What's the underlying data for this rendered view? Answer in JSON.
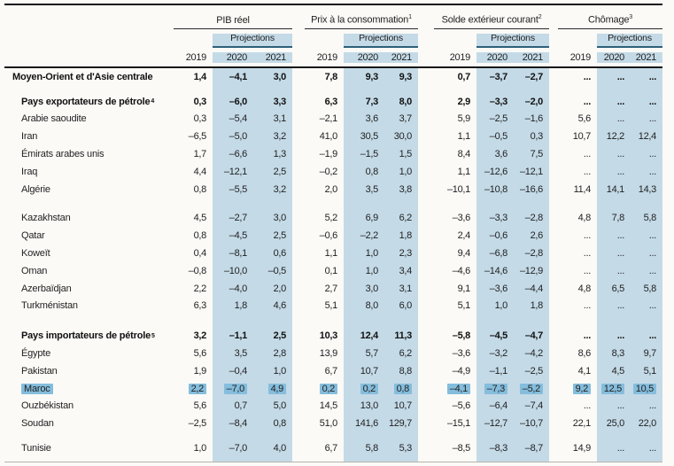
{
  "table": {
    "col_groups": [
      {
        "label": "PIB réel"
      },
      {
        "label": "Prix à la consommation",
        "sup": "1"
      },
      {
        "label": "Solde extérieur courant",
        "sup": "2"
      },
      {
        "label": "Chômage",
        "sup": "3"
      }
    ],
    "projections_label": "Projections",
    "years": [
      "2019",
      "2020",
      "2021"
    ],
    "accent_colors": {
      "band": "#c4dae7",
      "highlight": "#85bddc",
      "projections_rule": "#2d607a"
    },
    "rows": [
      {
        "label": "Moyen-Orient et d'Asie centrale",
        "style": "region",
        "values": [
          "1,4",
          "–4,1",
          "3,0",
          "7,8",
          "9,3",
          "9,3",
          "0,7",
          "–3,7",
          "–2,7",
          "...",
          "...",
          "..."
        ]
      },
      {
        "spacer": 8
      },
      {
        "label": "Pays exportateurs de pétrole",
        "sup": "4",
        "style": "group",
        "values": [
          "0,3",
          "–6,0",
          "3,3",
          "6,3",
          "7,3",
          "8,0",
          "2,9",
          "–3,3",
          "–2,0",
          "...",
          "...",
          "..."
        ]
      },
      {
        "label": "Arabie saoudite",
        "style": "country",
        "values": [
          "0,3",
          "–5,4",
          "3,1",
          "–2,1",
          "3,6",
          "3,7",
          "5,9",
          "–2,5",
          "–1,6",
          "5,6",
          "...",
          "..."
        ]
      },
      {
        "label": "Iran",
        "style": "country",
        "values": [
          "–6,5",
          "–5,0",
          "3,2",
          "41,0",
          "30,5",
          "30,0",
          "1,1",
          "–0,5",
          "0,3",
          "10,7",
          "12,2",
          "12,4"
        ]
      },
      {
        "label": "Émirats arabes unis",
        "style": "country",
        "values": [
          "1,7",
          "–6,6",
          "1,3",
          "–1,9",
          "–1,5",
          "1,5",
          "8,4",
          "3,6",
          "7,5",
          "...",
          "...",
          "..."
        ]
      },
      {
        "label": "Iraq",
        "style": "country",
        "values": [
          "4,4",
          "–12,1",
          "2,5",
          "–0,2",
          "0,8",
          "1,0",
          "1,1",
          "–12,6",
          "–12,1",
          "...",
          "...",
          "..."
        ]
      },
      {
        "label": "Algérie",
        "style": "country",
        "values": [
          "0,8",
          "–5,5",
          "3,2",
          "2,0",
          "3,5",
          "3,8",
          "–10,1",
          "–10,8",
          "–16,6",
          "11,4",
          "14,1",
          "14,3"
        ]
      },
      {
        "spacer": 13
      },
      {
        "label": "Kazakhstan",
        "style": "country",
        "values": [
          "4,5",
          "–2,7",
          "3,0",
          "5,2",
          "6,9",
          "6,2",
          "–3,6",
          "–3,3",
          "–2,8",
          "4,8",
          "7,8",
          "5,8"
        ]
      },
      {
        "label": "Qatar",
        "style": "country",
        "values": [
          "0,8",
          "–4,5",
          "2,5",
          "–0,6",
          "–2,2",
          "1,8",
          "2,4",
          "–0,6",
          "2,6",
          "...",
          "...",
          "..."
        ]
      },
      {
        "label": "Koweït",
        "style": "country",
        "values": [
          "0,4",
          "–8,1",
          "0,6",
          "1,1",
          "1,0",
          "2,3",
          "9,4",
          "–6,8",
          "–2,8",
          "...",
          "...",
          "..."
        ]
      },
      {
        "label": "Oman",
        "style": "country",
        "values": [
          "–0,8",
          "–10,0",
          "–0,5",
          "0,1",
          "1,0",
          "3,4",
          "–4,6",
          "–14,6",
          "–12,9",
          "...",
          "...",
          "..."
        ]
      },
      {
        "label": "Azerbaïdjan",
        "style": "country",
        "values": [
          "2,2",
          "–4,0",
          "2,0",
          "2,7",
          "3,0",
          "3,1",
          "9,1",
          "–3,6",
          "–4,4",
          "4,8",
          "6,5",
          "5,8"
        ]
      },
      {
        "label": "Turkménistan",
        "style": "country",
        "values": [
          "6,3",
          "1,8",
          "4,6",
          "5,1",
          "8,0",
          "6,0",
          "5,1",
          "1,0",
          "1,8",
          "...",
          "...",
          "..."
        ]
      },
      {
        "spacer": 14
      },
      {
        "label": "Pays importateurs de pétrole",
        "sup": "5",
        "style": "group",
        "values": [
          "3,2",
          "–1,1",
          "2,5",
          "10,3",
          "12,4",
          "11,3",
          "–5,8",
          "–4,5",
          "–4,7",
          "...",
          "...",
          "..."
        ]
      },
      {
        "label": "Égypte",
        "style": "country",
        "values": [
          "5,6",
          "3,5",
          "2,8",
          "13,9",
          "5,7",
          "6,2",
          "–3,6",
          "–3,2",
          "–4,2",
          "8,6",
          "8,3",
          "9,7"
        ]
      },
      {
        "label": "Pakistan",
        "style": "country",
        "values": [
          "1,9",
          "–0,4",
          "1,0",
          "6,7",
          "10,7",
          "8,8",
          "–4,9",
          "–1,1",
          "–2,5",
          "4,1",
          "4,5",
          "5,1"
        ]
      },
      {
        "label": "Maroc",
        "style": "country",
        "highlight": true,
        "values": [
          "2,2",
          "–7,0",
          "4,9",
          "0,2",
          "0,2",
          "0,8",
          "–4,1",
          "–7,3",
          "–5,2",
          "9,2",
          "12,5",
          "10,5"
        ]
      },
      {
        "label": "Ouzbékistan",
        "style": "country",
        "values": [
          "5,6",
          "0,7",
          "5,0",
          "14,5",
          "13,0",
          "10,7",
          "–5,6",
          "–6,4",
          "–7,4",
          "...",
          "...",
          "..."
        ]
      },
      {
        "label": "Soudan",
        "style": "country",
        "values": [
          "–2,5",
          "–8,4",
          "0,8",
          "51,0",
          "141,6",
          "129,7",
          "–15,1",
          "–12,7",
          "–10,7",
          "22,1",
          "25,0",
          "22,0"
        ]
      },
      {
        "spacer": 8
      },
      {
        "label": "Tunisie",
        "style": "country",
        "values": [
          "1,0",
          "–7,0",
          "4,0",
          "6,7",
          "5,8",
          "5,3",
          "–8,5",
          "–8,3",
          "–8,7",
          "14,9",
          "...",
          "..."
        ]
      },
      {
        "spacer": 5
      }
    ]
  }
}
